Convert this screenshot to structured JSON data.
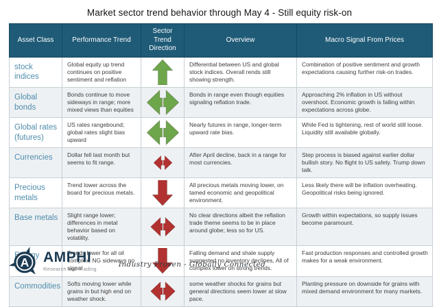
{
  "title": "Market sector trend behavior through May 4 - Still equity risk-on",
  "columns": [
    "Asset Class",
    "Performance Trend",
    "Sector Trend Direction",
    "Overview",
    "Macro Signal From Prices"
  ],
  "rows": [
    {
      "asset_class": "stock indices",
      "performance": "Global equity up trend continues on positive sentiment and reflation",
      "arrow": {
        "direction": "up",
        "color": "green",
        "size": "lg"
      },
      "overview": "Differential between US and global stock indices. Overall rends still showing strength.",
      "macro": "Combination of positive sentiment and growth expectations causing further risk-on trades."
    },
    {
      "asset_class": "Global bonds",
      "performance": "Bonds continue to move sideways in range; more mixed views than equities",
      "arrow": {
        "direction": "sideways",
        "color": "green",
        "size": "lg"
      },
      "overview": "Bonds in range even though equities signaling reflation trade.",
      "macro": "Approaching 2% inflation in US without overshoot. Economic growth is falling within expectations across globe."
    },
    {
      "asset_class": "Global rates (futures)",
      "performance": "US rates rangebound; global rates slight bias upward",
      "arrow": {
        "direction": "sideways",
        "color": "green",
        "size": "lg"
      },
      "overview": "Nearly futures in range, longer-term upward rate bias.",
      "macro": "While Fed is tightening, rest of world still loose. Liquidity still available globally."
    },
    {
      "asset_class": "Currencies",
      "performance": "Dollar fell last month but seems to fit range.",
      "arrow": {
        "direction": "sideways",
        "color": "red",
        "size": "sm"
      },
      "overview": "After April decline, back in a range for most currencies.",
      "macro": "Step process is biased against earlier dollar bullish story. No flight to US safety. Trump down talk."
    },
    {
      "asset_class": "Precious metals",
      "performance": "Trend lower across the board for precious metals.",
      "arrow": {
        "direction": "down",
        "color": "red",
        "size": "lg"
      },
      "overview": "All precious metals moving lower, on tamed economic and geopolitical environment.",
      "macro": "Less likely there will be inflation overheating. Geopolitical risks being ignored."
    },
    {
      "asset_class": "Base metals",
      "performance": "Slight range lower; differences in metal behavior based on volatility.",
      "arrow": {
        "direction": "sideways",
        "color": "red",
        "size": "md"
      },
      "overview": "No clear directions albeit the reflation trade theme seems to be in place around globe; less so for US.",
      "macro": "Growth within expectations, so supply issues become paramount."
    },
    {
      "asset_class": "Energy",
      "performance": "Trends lower for all oil complex; NG sideways no signal",
      "arrow": {
        "direction": "down",
        "color": "red",
        "size": "lg"
      },
      "overview": "Falling demand and shale supply suggested no inventory declines, All of complex lower on strong trends.",
      "macro": "Fast production responses and controlled growth makes for a weak environment."
    },
    {
      "asset_class": "Commodities",
      "performance": "Softs moving lower while grains in but high end on weather shock.",
      "arrow": {
        "direction": "sideways",
        "color": "red",
        "size": "md"
      },
      "overview": "some weather shocks for grains but general directions seem lower at slow pace.",
      "macro": "Planting pressure on downside for grains with mixed demand environment for many markets."
    }
  ],
  "footer": {
    "brand": "AMPHI",
    "brand_subtitle": "Research and Trading",
    "tagline": "Industry Proven - Globally Connected"
  },
  "colors": {
    "header_bg": "#1f5b77",
    "arrow_green": "#6ea64b",
    "arrow_red": "#b13230",
    "asset_blue": "#4e8cac",
    "logo_navy": "#1c3b52"
  }
}
